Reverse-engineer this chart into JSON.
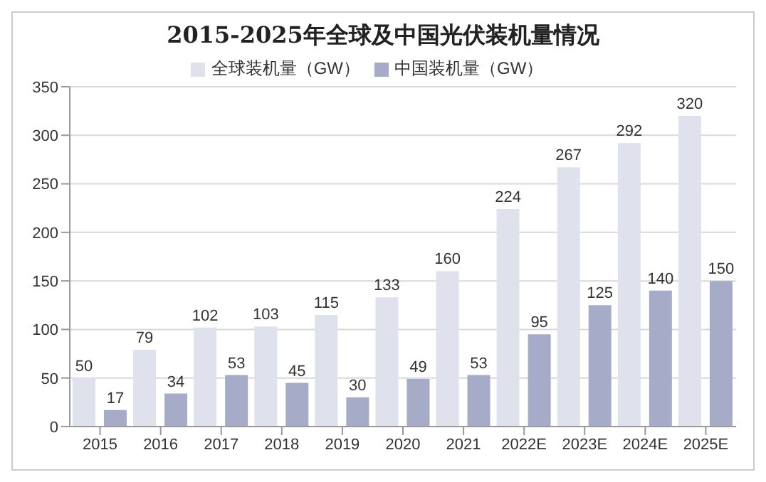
{
  "chart_data": {
    "type": "bar",
    "title": "2015-2025年全球及中国光伏装机量情况",
    "categories": [
      "2015",
      "2016",
      "2017",
      "2018",
      "2019",
      "2020",
      "2021",
      "2022E",
      "2023E",
      "2024E",
      "2025E"
    ],
    "series": [
      {
        "name": "全球装机量（GW）",
        "color": "#dfe2ec",
        "values": [
          50,
          79,
          102,
          103,
          115,
          133,
          160,
          224,
          267,
          292,
          320
        ]
      },
      {
        "name": "中国装机量（GW）",
        "color": "#a6abc8",
        "values": [
          17,
          34,
          53,
          45,
          30,
          49,
          53,
          95,
          125,
          140,
          150
        ]
      }
    ],
    "ylim": [
      0,
      350
    ],
    "yticks": [
      0,
      50,
      100,
      150,
      200,
      250,
      300,
      350
    ],
    "grid": "y",
    "legend": "top",
    "data_labels": true
  }
}
